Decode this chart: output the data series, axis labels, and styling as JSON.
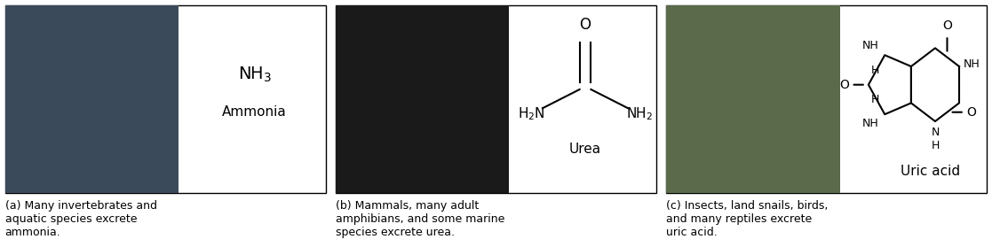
{
  "fig_width": 11.17,
  "fig_height": 2.79,
  "dpi": 100,
  "bg_color": "#ffffff",
  "caption_a": "(a) Many invertebrates and\naquatic species excrete\nammonia.",
  "caption_b": "(b) Mammals, many adult\namphibians, and some marine\nspecies excrete urea.",
  "caption_c": "(c) Insects, land snails, birds,\nand many reptiles excrete\nuric acid.",
  "photo_color_a": "#3a4a5a",
  "photo_color_b": "#1a1a1a",
  "photo_color_c": "#5a6a4a",
  "border_color": "#000000",
  "text_color": "#000000",
  "caption_fontsize": 9,
  "molecule_fontsize": 11,
  "nh3_line1": "NH",
  "nh3_sub": "3",
  "nh3_line2": "Ammonia"
}
